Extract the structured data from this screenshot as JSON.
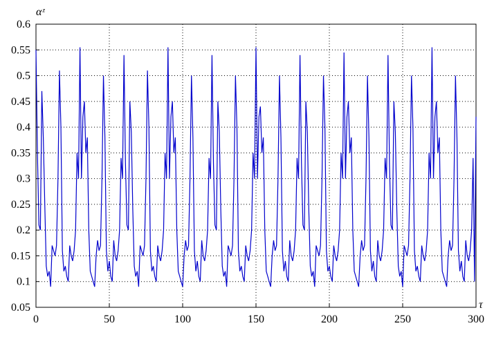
{
  "chart_data": {
    "type": "line",
    "x_label": "τ",
    "y_label": "αᶻ",
    "x": [
      0,
      1,
      2,
      3,
      4,
      5,
      6,
      7,
      8,
      9,
      10,
      11,
      12,
      13,
      14,
      15,
      16,
      17,
      18,
      19,
      20,
      21,
      22,
      23,
      24,
      25,
      26,
      27,
      28,
      29,
      30,
      31,
      32,
      33,
      34,
      35,
      36,
      37,
      38,
      39,
      40,
      41,
      42,
      43,
      44,
      45,
      46,
      47,
      48,
      49,
      50,
      51,
      52,
      53,
      54,
      55,
      56,
      57,
      58,
      59,
      60,
      61,
      62,
      63,
      64,
      65,
      66,
      67,
      68,
      69,
      70,
      71,
      72,
      73,
      74,
      75,
      76,
      77,
      78,
      79,
      80,
      81,
      82,
      83,
      84,
      85,
      86,
      87,
      88,
      89,
      90,
      91,
      92,
      93,
      94,
      95,
      96,
      97,
      98,
      99,
      100,
      101,
      102,
      103,
      104,
      105,
      106,
      107,
      108,
      109,
      110,
      111,
      112,
      113,
      114,
      115,
      116,
      117,
      118,
      119,
      120,
      121,
      122,
      123,
      124,
      125,
      126,
      127,
      128,
      129,
      130,
      131,
      132,
      133,
      134,
      135,
      136,
      137,
      138,
      139,
      140,
      141,
      142,
      143,
      144,
      145,
      146,
      147,
      148,
      149,
      150,
      151,
      152,
      153,
      154,
      155,
      156,
      157,
      158,
      159,
      160,
      161,
      162,
      163,
      164,
      165,
      166,
      167,
      168,
      169,
      170,
      171,
      172,
      173,
      174,
      175,
      176,
      177,
      178,
      179,
      180,
      181,
      182,
      183,
      184,
      185,
      186,
      187,
      188,
      189,
      190,
      191,
      192,
      193,
      194,
      195,
      196,
      197,
      198,
      199,
      200,
      201,
      202,
      203,
      204,
      205,
      206,
      207,
      208,
      209,
      210,
      211,
      212,
      213,
      214,
      215,
      216,
      217,
      218,
      219,
      220,
      221,
      222,
      223,
      224,
      225,
      226,
      227,
      228,
      229,
      230,
      231,
      232,
      233,
      234,
      235,
      236,
      237,
      238,
      239,
      240,
      241,
      242,
      243,
      244,
      245,
      246,
      247,
      248,
      249,
      250,
      251,
      252,
      253,
      254,
      255,
      256,
      257,
      258,
      259,
      260,
      261,
      262,
      263,
      264,
      265,
      266,
      267,
      268,
      269,
      270,
      271,
      272,
      273,
      274,
      275,
      276,
      277,
      278,
      279,
      280,
      281,
      282,
      283,
      284,
      285,
      286,
      287,
      288,
      289,
      290,
      291,
      292,
      293,
      294,
      295,
      296,
      297,
      298,
      299,
      300
    ],
    "values": [
      0.55,
      0.35,
      0.21,
      0.2,
      0.47,
      0.38,
      0.25,
      0.13,
      0.11,
      0.12,
      0.09,
      0.17,
      0.16,
      0.15,
      0.17,
      0.3,
      0.51,
      0.4,
      0.16,
      0.12,
      0.13,
      0.11,
      0.1,
      0.17,
      0.15,
      0.14,
      0.16,
      0.2,
      0.35,
      0.3,
      0.555,
      0.3,
      0.42,
      0.45,
      0.35,
      0.38,
      0.2,
      0.12,
      0.11,
      0.1,
      0.09,
      0.15,
      0.18,
      0.16,
      0.17,
      0.3,
      0.5,
      0.38,
      0.16,
      0.12,
      0.14,
      0.11,
      0.1,
      0.18,
      0.15,
      0.14,
      0.16,
      0.2,
      0.34,
      0.3,
      0.54,
      0.33,
      0.21,
      0.2,
      0.45,
      0.39,
      0.24,
      0.13,
      0.11,
      0.12,
      0.09,
      0.17,
      0.16,
      0.15,
      0.17,
      0.3,
      0.51,
      0.4,
      0.16,
      0.12,
      0.13,
      0.11,
      0.1,
      0.17,
      0.15,
      0.14,
      0.16,
      0.2,
      0.35,
      0.3,
      0.555,
      0.3,
      0.42,
      0.45,
      0.35,
      0.38,
      0.2,
      0.12,
      0.11,
      0.1,
      0.09,
      0.15,
      0.18,
      0.16,
      0.17,
      0.3,
      0.5,
      0.38,
      0.16,
      0.12,
      0.14,
      0.11,
      0.1,
      0.18,
      0.15,
      0.14,
      0.16,
      0.2,
      0.34,
      0.3,
      0.54,
      0.33,
      0.21,
      0.2,
      0.45,
      0.39,
      0.24,
      0.13,
      0.11,
      0.12,
      0.09,
      0.17,
      0.16,
      0.15,
      0.17,
      0.3,
      0.5,
      0.4,
      0.16,
      0.12,
      0.13,
      0.11,
      0.1,
      0.17,
      0.15,
      0.14,
      0.16,
      0.2,
      0.35,
      0.3,
      0.555,
      0.3,
      0.42,
      0.44,
      0.35,
      0.38,
      0.2,
      0.12,
      0.11,
      0.1,
      0.09,
      0.15,
      0.18,
      0.16,
      0.17,
      0.3,
      0.5,
      0.38,
      0.16,
      0.12,
      0.14,
      0.11,
      0.1,
      0.18,
      0.15,
      0.14,
      0.16,
      0.2,
      0.34,
      0.3,
      0.54,
      0.33,
      0.21,
      0.2,
      0.45,
      0.39,
      0.24,
      0.13,
      0.11,
      0.12,
      0.09,
      0.17,
      0.16,
      0.15,
      0.17,
      0.3,
      0.5,
      0.4,
      0.16,
      0.12,
      0.13,
      0.11,
      0.1,
      0.17,
      0.15,
      0.14,
      0.16,
      0.2,
      0.35,
      0.3,
      0.545,
      0.3,
      0.42,
      0.45,
      0.35,
      0.38,
      0.2,
      0.12,
      0.11,
      0.1,
      0.09,
      0.15,
      0.18,
      0.16,
      0.17,
      0.3,
      0.5,
      0.38,
      0.16,
      0.12,
      0.14,
      0.11,
      0.1,
      0.18,
      0.15,
      0.14,
      0.16,
      0.2,
      0.34,
      0.3,
      0.54,
      0.33,
      0.21,
      0.2,
      0.45,
      0.39,
      0.24,
      0.13,
      0.11,
      0.12,
      0.09,
      0.17,
      0.16,
      0.15,
      0.17,
      0.3,
      0.5,
      0.4,
      0.16,
      0.12,
      0.13,
      0.11,
      0.1,
      0.17,
      0.15,
      0.14,
      0.16,
      0.2,
      0.35,
      0.3,
      0.555,
      0.3,
      0.42,
      0.45,
      0.35,
      0.38,
      0.2,
      0.12,
      0.11,
      0.1,
      0.09,
      0.15,
      0.18,
      0.16,
      0.17,
      0.3,
      0.5,
      0.38,
      0.16,
      0.12,
      0.14,
      0.11,
      0.1,
      0.18,
      0.15,
      0.14,
      0.16,
      0.2,
      0.34,
      0.1,
      0.42
    ],
    "color": "#0000cc",
    "xlim": [
      0,
      300
    ],
    "xticks": [
      0,
      50,
      100,
      150,
      200,
      250,
      300
    ],
    "ylim": [
      0.05,
      0.6
    ],
    "yticks": [
      0.05,
      0.1,
      0.15,
      0.2,
      0.25,
      0.3,
      0.35,
      0.4,
      0.45,
      0.5,
      0.55,
      0.6
    ],
    "grid": true
  }
}
